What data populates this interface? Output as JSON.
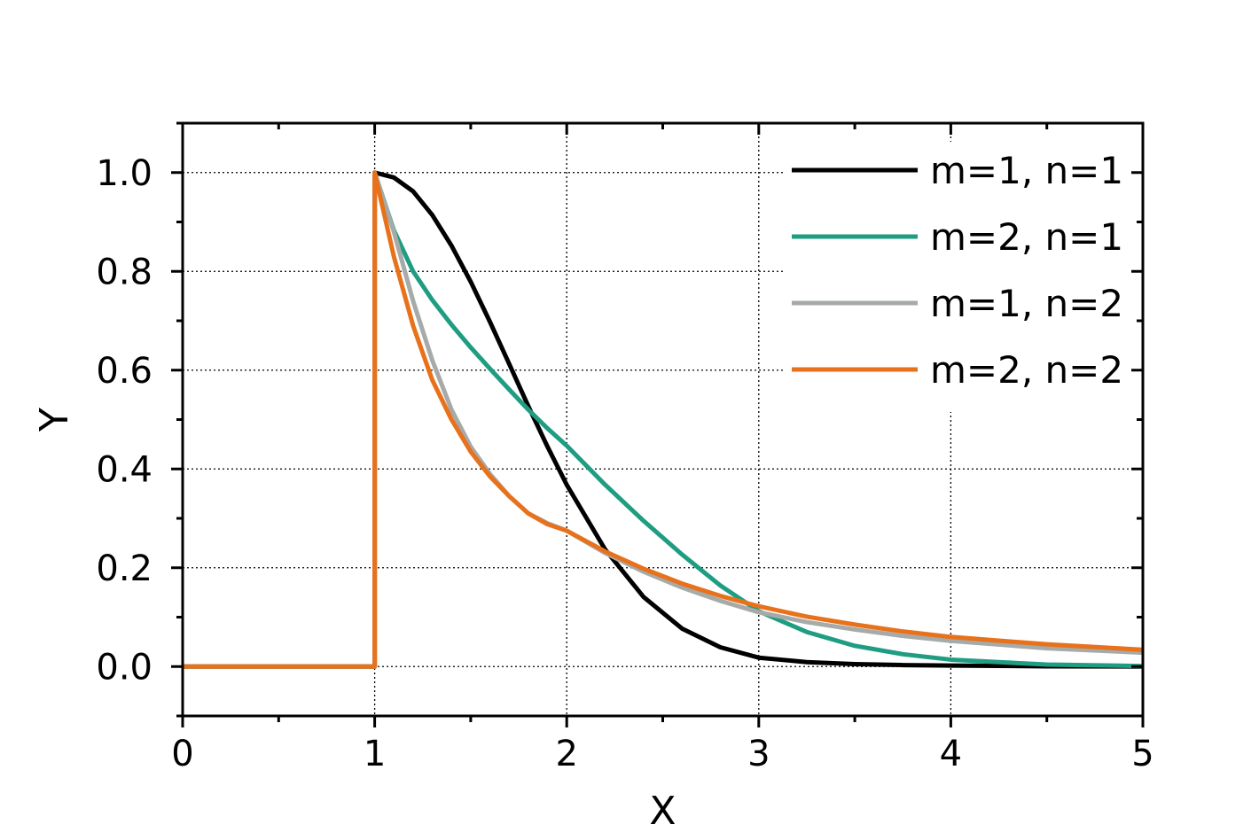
{
  "chart_data": {
    "type": "line",
    "xlabel": "X",
    "ylabel": "Y",
    "xlim": [
      0,
      5
    ],
    "ylim": [
      -0.1,
      1.1
    ],
    "xticks": [
      0,
      1,
      2,
      3,
      4,
      5
    ],
    "xtick_labels": [
      "0",
      "1",
      "2",
      "3",
      "4",
      "5"
    ],
    "yticks": [
      0.0,
      0.2,
      0.4,
      0.6,
      0.8,
      1.0
    ],
    "ytick_labels": [
      "0.0",
      "0.2",
      "0.4",
      "0.6",
      "0.8",
      "1.0"
    ],
    "grid": true,
    "legend_position": "top-right",
    "series": [
      {
        "name": "m=1, n=1",
        "color": "#000000",
        "x": [
          0,
          1,
          1,
          1.1,
          1.2,
          1.3,
          1.4,
          1.5,
          1.6,
          1.7,
          1.8,
          1.9,
          2.0,
          2.2,
          2.4,
          2.6,
          2.8,
          3.0,
          3.25,
          3.5,
          3.75,
          4.0,
          4.5,
          5.0
        ],
        "y": [
          0,
          0,
          1.0,
          0.99,
          0.962,
          0.914,
          0.852,
          0.779,
          0.698,
          0.613,
          0.527,
          0.445,
          0.368,
          0.237,
          0.141,
          0.077,
          0.039,
          0.018,
          0.009,
          0.005,
          0.003,
          0.002,
          0.0005,
          0.0001
        ]
      },
      {
        "name": "m=2, n=1",
        "color": "#1f9d82",
        "x": [
          0,
          1,
          1,
          1.1,
          1.2,
          1.3,
          1.4,
          1.5,
          1.6,
          1.7,
          1.8,
          1.9,
          2.0,
          2.2,
          2.4,
          2.6,
          2.8,
          3.0,
          3.25,
          3.5,
          3.75,
          4.0,
          4.5,
          5.0
        ],
        "y": [
          0,
          0,
          1.0,
          0.883,
          0.8,
          0.742,
          0.692,
          0.646,
          0.603,
          0.561,
          0.52,
          0.482,
          0.447,
          0.368,
          0.295,
          0.227,
          0.164,
          0.112,
          0.07,
          0.042,
          0.025,
          0.014,
          0.004,
          0.001
        ]
      },
      {
        "name": "m=1, n=2",
        "color": "#a6aaa8",
        "x": [
          0,
          1,
          1,
          1.1,
          1.2,
          1.3,
          1.4,
          1.5,
          1.6,
          1.7,
          1.8,
          1.9,
          2.0,
          2.2,
          2.4,
          2.6,
          2.8,
          3.0,
          3.25,
          3.5,
          3.75,
          4.0,
          4.5,
          5.0
        ],
        "y": [
          0,
          0,
          1.0,
          0.88,
          0.74,
          0.62,
          0.52,
          0.445,
          0.39,
          0.345,
          0.31,
          0.29,
          0.275,
          0.23,
          0.192,
          0.16,
          0.133,
          0.11,
          0.09,
          0.075,
          0.062,
          0.052,
          0.037,
          0.028
        ]
      },
      {
        "name": "m=2, n=2",
        "color": "#e8711c",
        "x": [
          0,
          1,
          1,
          1.1,
          1.2,
          1.3,
          1.4,
          1.5,
          1.6,
          1.7,
          1.8,
          1.9,
          2.0,
          2.2,
          2.4,
          2.6,
          2.8,
          3.0,
          3.25,
          3.5,
          3.75,
          4.0,
          4.5,
          5.0
        ],
        "y": [
          0,
          0,
          1.0,
          0.83,
          0.69,
          0.58,
          0.5,
          0.435,
          0.385,
          0.345,
          0.31,
          0.288,
          0.275,
          0.233,
          0.198,
          0.168,
          0.143,
          0.122,
          0.101,
          0.085,
          0.071,
          0.06,
          0.045,
          0.034
        ]
      }
    ]
  }
}
